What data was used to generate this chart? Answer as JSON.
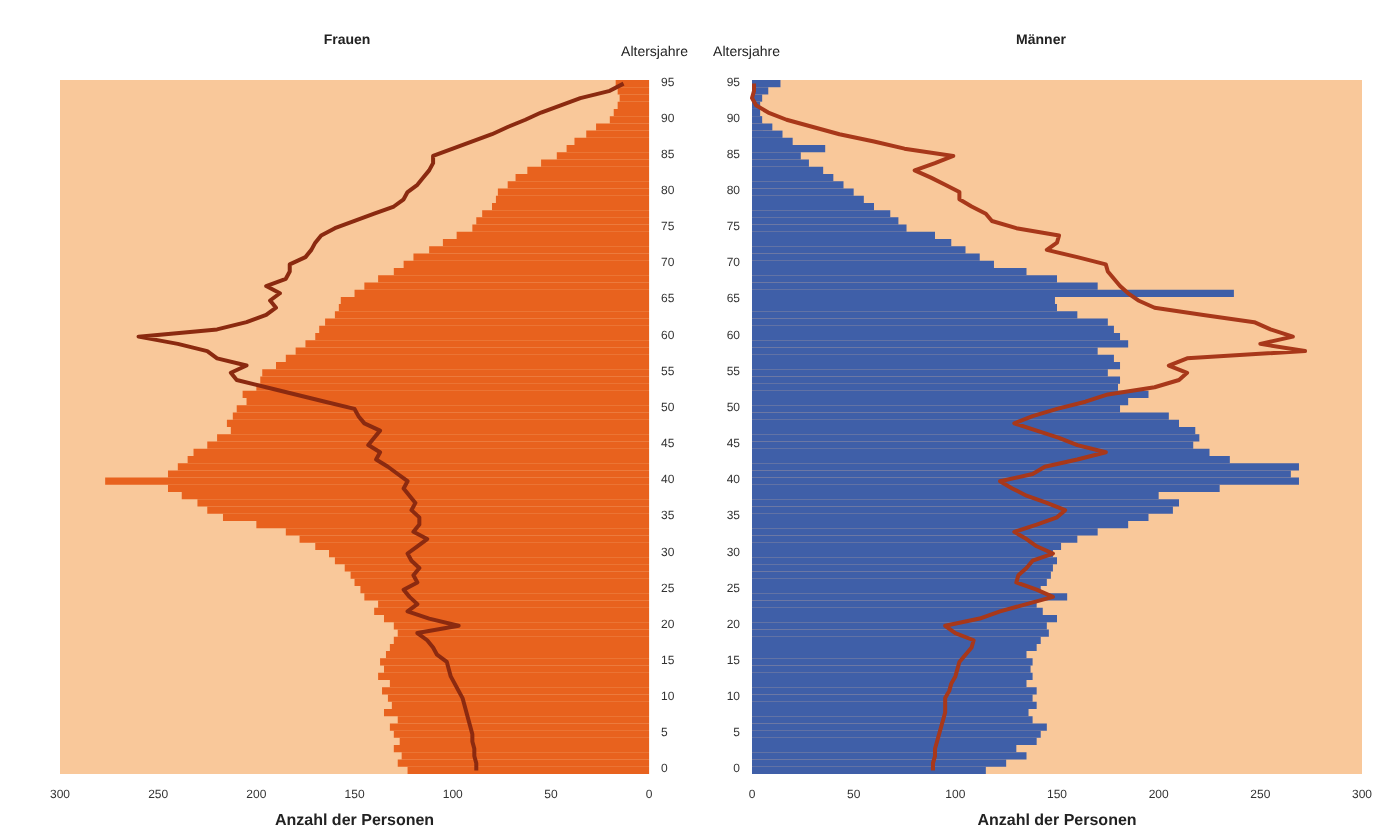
{
  "chart_data": [
    {
      "type": "bar",
      "orientation": "horizontal",
      "title": "Frauen",
      "xlabel": "Anzahl der Personen",
      "ylabel": "Altersjahre",
      "marker": "none",
      "categories": [
        "95",
        null,
        null,
        null,
        null,
        "90",
        null,
        null,
        null,
        null,
        "85",
        null,
        null,
        null,
        null,
        "80",
        null,
        null,
        null,
        null,
        "75",
        null,
        null,
        null,
        null,
        "70",
        null,
        null,
        null,
        null,
        "65",
        null,
        null,
        null,
        null,
        "60",
        null,
        null,
        null,
        null,
        "55",
        null,
        null,
        null,
        null,
        "50",
        null,
        null,
        null,
        null,
        "45",
        null,
        null,
        null,
        null,
        "40",
        null,
        null,
        null,
        null,
        "35",
        null,
        null,
        null,
        null,
        "30",
        null,
        null,
        null,
        null,
        "25",
        null,
        null,
        null,
        null,
        "20",
        null,
        null,
        null,
        null,
        "15",
        null,
        null,
        null,
        null,
        "10",
        null,
        null,
        null,
        null,
        "5",
        null,
        null,
        null,
        null,
        "0"
      ],
      "xlim": [
        300,
        0
      ],
      "xticks": [
        300,
        250,
        200,
        150,
        100,
        50,
        0
      ],
      "series": [
        {
          "color": "#e8621e",
          "values": [
            17,
            16,
            15,
            16,
            18,
            20,
            27,
            32,
            38,
            42,
            47,
            55,
            62,
            68,
            72,
            77,
            78,
            80,
            85,
            88,
            90,
            98,
            105,
            112,
            120,
            125,
            130,
            138,
            145,
            150,
            157,
            158,
            160,
            165,
            168,
            170,
            175,
            180,
            185,
            190,
            197,
            198,
            200,
            207,
            205,
            210,
            212,
            215,
            213,
            220,
            225,
            232,
            235,
            240,
            245,
            277,
            245,
            238,
            230,
            225,
            217,
            200,
            185,
            178,
            170,
            163,
            160,
            155,
            152,
            150,
            147,
            145,
            138,
            140,
            135,
            130,
            128,
            130,
            132,
            134,
            137,
            135,
            138,
            132,
            136,
            133,
            131,
            135,
            128,
            132,
            130,
            127,
            130,
            126,
            128,
            123
          ]
        },
        {
          "type": "line",
          "color": "#8b2a10",
          "values": [
            13,
            20,
            35,
            45,
            55,
            63,
            72,
            80,
            90,
            100,
            110,
            110,
            112,
            115,
            118,
            123,
            125,
            130,
            140,
            150,
            160,
            167,
            170,
            172,
            175,
            183,
            183,
            185,
            195,
            188,
            193,
            190,
            195,
            205,
            220,
            260,
            240,
            225,
            220,
            205,
            213,
            210,
            195,
            180,
            165,
            150,
            148,
            145,
            137,
            140,
            143,
            137,
            139,
            133,
            128,
            123,
            125,
            122,
            119,
            121,
            117,
            117,
            120,
            113,
            118,
            123,
            121,
            117,
            120,
            118,
            125,
            122,
            118,
            123,
            112,
            97,
            118,
            113,
            110,
            108,
            103,
            102,
            101,
            99,
            97,
            95,
            94,
            93,
            92,
            91,
            90,
            90,
            89,
            89,
            88,
            88
          ]
        }
      ]
    },
    {
      "type": "bar",
      "orientation": "horizontal",
      "title": "Männer",
      "xlabel": "Anzahl der Personen",
      "ylabel": "Altersjahre",
      "marker": "none",
      "categories": [
        "95",
        null,
        null,
        null,
        null,
        "90",
        null,
        null,
        null,
        null,
        "85",
        null,
        null,
        null,
        null,
        "80",
        null,
        null,
        null,
        null,
        "75",
        null,
        null,
        null,
        null,
        "70",
        null,
        null,
        null,
        null,
        "65",
        null,
        null,
        null,
        null,
        "60",
        null,
        null,
        null,
        null,
        "55",
        null,
        null,
        null,
        null,
        "50",
        null,
        null,
        null,
        null,
        "45",
        null,
        null,
        null,
        null,
        "40",
        null,
        null,
        null,
        null,
        "35",
        null,
        null,
        null,
        null,
        "30",
        null,
        null,
        null,
        null,
        "25",
        null,
        null,
        null,
        null,
        "20",
        null,
        null,
        null,
        null,
        "15",
        null,
        null,
        null,
        null,
        "10",
        null,
        null,
        null,
        null,
        "5",
        null,
        null,
        null,
        null,
        "0"
      ],
      "xlim": [
        0,
        300
      ],
      "xticks": [
        0,
        50,
        100,
        150,
        200,
        250,
        300
      ],
      "series": [
        {
          "color": "#3f5fa8",
          "values": [
            14,
            8,
            5,
            4,
            4,
            5,
            10,
            15,
            20,
            36,
            24,
            28,
            35,
            40,
            45,
            50,
            55,
            60,
            68,
            72,
            76,
            90,
            98,
            105,
            112,
            119,
            135,
            150,
            170,
            237,
            149,
            150,
            160,
            175,
            178,
            181,
            185,
            170,
            178,
            181,
            175,
            181,
            180,
            195,
            185,
            181,
            205,
            210,
            218,
            220,
            217,
            225,
            235,
            269,
            265,
            269,
            230,
            200,
            210,
            207,
            195,
            185,
            170,
            160,
            152,
            148,
            150,
            148,
            147,
            145,
            142,
            155,
            140,
            143,
            150,
            145,
            146,
            142,
            140,
            135,
            138,
            137,
            138,
            135,
            140,
            138,
            140,
            136,
            138,
            145,
            142,
            140,
            130,
            135,
            125,
            115
          ]
        },
        {
          "type": "line",
          "color": "#a8381a",
          "values": [
            1,
            1,
            0,
            2,
            8,
            17,
            30,
            43,
            60,
            75,
            99,
            90,
            80,
            88,
            95,
            102,
            102,
            108,
            115,
            118,
            130,
            151,
            150,
            145,
            160,
            174,
            175,
            178,
            181,
            185,
            190,
            198,
            222,
            247,
            255,
            266,
            250,
            272,
            214,
            205,
            214,
            210,
            198,
            175,
            164,
            150,
            138,
            129,
            140,
            151,
            160,
            174,
            160,
            144,
            138,
            122,
            128,
            135,
            145,
            154,
            150,
            140,
            129,
            135,
            140,
            148,
            138,
            135,
            131,
            130,
            140,
            148,
            135,
            122,
            112,
            95,
            100,
            109,
            108,
            105,
            102,
            101,
            100,
            98,
            97,
            95,
            95,
            95,
            94,
            93,
            92,
            91,
            90,
            90,
            89,
            89
          ]
        }
      ]
    }
  ]
}
